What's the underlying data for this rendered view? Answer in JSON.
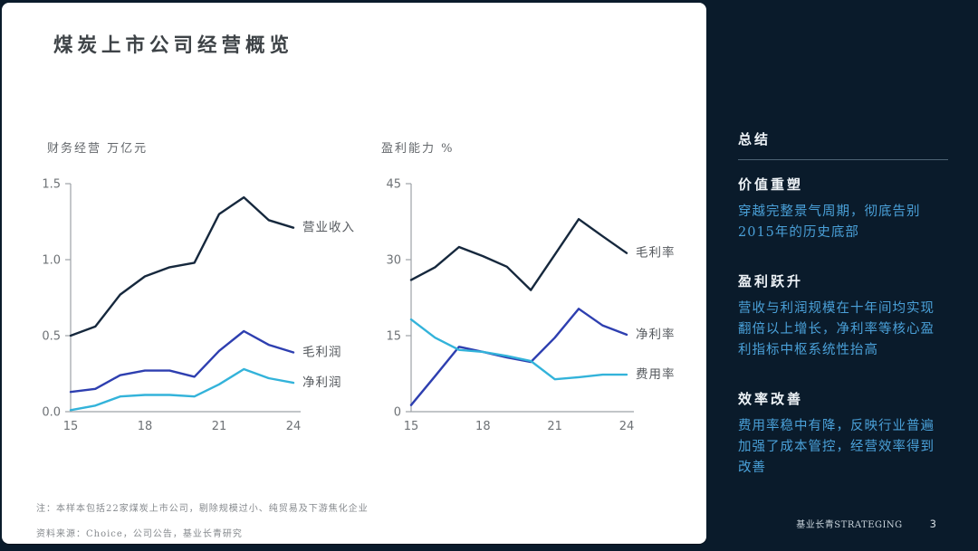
{
  "slide": {
    "title": "煤炭上市公司经营概览",
    "page_number": "3",
    "footer_brand": "基业长青STRATEGING",
    "notes": [
      "注：本样本包括22家煤炭上市公司，剔除规模过小、纯贸易及下游焦化企业",
      "资料来源：Choice，公司公告，基业长青研究"
    ],
    "colors": {
      "card_background": "#ffffff",
      "slide_background": "#0a1b2b",
      "axis": "#9da2a6"
    }
  },
  "sidebar": {
    "title": "总结",
    "sections": [
      {
        "heading": "价值重塑",
        "body": "穿越完整景气周期，彻底告别2015年的历史底部"
      },
      {
        "heading": "盈利跃升",
        "body": "营收与利润规模在十年间均实现翻倍以上增长，净利率等核心盈利指标中枢系统性抬高"
      },
      {
        "heading": "效率改善",
        "body": "费用率稳中有降，反映行业普遍加强了成本管控，经营效率得到改善"
      }
    ],
    "colors": {
      "background": "#0a1b2b",
      "heading": "#eef3f7",
      "body_text": "#4aa0d8"
    }
  },
  "chart_data": [
    {
      "id": "financial-chart",
      "type": "line",
      "title": "财务经营 万亿元",
      "x": [
        15,
        16,
        17,
        18,
        19,
        20,
        21,
        22,
        23,
        24
      ],
      "xtick_values": [
        15,
        18,
        21,
        24
      ],
      "xtick_labels": [
        "15",
        "18",
        "21",
        "24"
      ],
      "ylim": [
        0,
        1.5
      ],
      "ytick_values": [
        0,
        0.5,
        1.0,
        1.5
      ],
      "ytick_labels": [
        "0.0",
        "0.5",
        "1.0",
        "1.5"
      ],
      "grid": false,
      "legend_position": "right-of-line-labels",
      "series": [
        {
          "id": "operating-revenue",
          "name": "营业收入",
          "color": "#16283d",
          "values": [
            0.5,
            0.56,
            0.77,
            0.89,
            0.95,
            0.98,
            1.3,
            1.41,
            1.26,
            1.21
          ]
        },
        {
          "id": "gross-profit",
          "name": "毛利润",
          "color": "#2e3fb0",
          "values": [
            0.13,
            0.15,
            0.24,
            0.27,
            0.27,
            0.23,
            0.4,
            0.53,
            0.44,
            0.39
          ]
        },
        {
          "id": "net-profit",
          "name": "净利润",
          "color": "#33b3da",
          "values": [
            0.01,
            0.04,
            0.1,
            0.11,
            0.11,
            0.1,
            0.18,
            0.28,
            0.22,
            0.19
          ]
        }
      ]
    },
    {
      "id": "profitability-chart",
      "type": "line",
      "title": "盈利能力 %",
      "x": [
        15,
        16,
        17,
        18,
        19,
        20,
        21,
        22,
        23,
        24
      ],
      "xtick_values": [
        15,
        18,
        21,
        24
      ],
      "xtick_labels": [
        "15",
        "18",
        "21",
        "24"
      ],
      "ylim": [
        0,
        45
      ],
      "ytick_values": [
        0,
        15,
        30,
        45
      ],
      "ytick_labels": [
        "0",
        "15",
        "30",
        "45"
      ],
      "grid": false,
      "legend_position": "right-of-line-labels",
      "series": [
        {
          "id": "gross-margin",
          "name": "毛利率",
          "color": "#16283d",
          "values": [
            26.0,
            28.5,
            32.5,
            30.7,
            28.6,
            24.0,
            31.0,
            38.0,
            34.6,
            31.3
          ]
        },
        {
          "id": "net-margin",
          "name": "净利率",
          "color": "#2e3fb0",
          "values": [
            1.3,
            7.0,
            12.8,
            11.8,
            10.7,
            9.8,
            14.6,
            20.3,
            17.0,
            15.2
          ]
        },
        {
          "id": "expense-ratio",
          "name": "费用率",
          "color": "#33b3da",
          "values": [
            18.2,
            14.6,
            12.2,
            11.8,
            11.0,
            10.0,
            6.4,
            6.8,
            7.3,
            7.3
          ]
        }
      ]
    }
  ]
}
